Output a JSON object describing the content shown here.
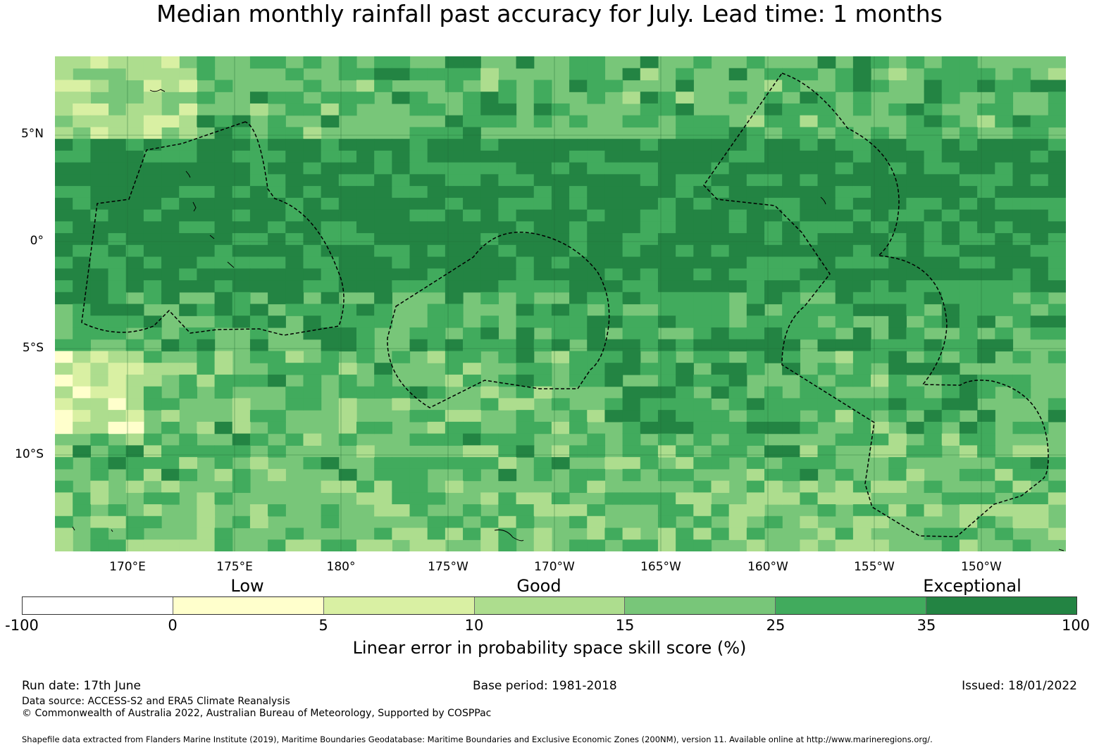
{
  "title": "Median monthly rainfall past accuracy for July. Lead time: 1 months",
  "map": {
    "lat_labels": [
      "5°N",
      "0°",
      "5°S",
      "10°S"
    ],
    "lon_labels": [
      "170°E",
      "175°E",
      "180°",
      "175°W",
      "170°W",
      "165°W",
      "160°W",
      "155°W",
      "150°W"
    ]
  },
  "legend": {
    "categories": [
      "Low",
      "Good",
      "Exceptional"
    ],
    "ticks": [
      "-100",
      "0",
      "5",
      "10",
      "15",
      "25",
      "35",
      "100"
    ],
    "colors": [
      "#ffffff",
      "#ffffcc",
      "#d9f0a3",
      "#addd8e",
      "#78c679",
      "#41ab5d",
      "#238443"
    ],
    "label": "Linear error in probability space skill score (%)"
  },
  "footer": {
    "run_date": "Run date: 17th June",
    "base_period": "Base period: 1981-2018",
    "issued": "Issued: 18/01/2022",
    "data_source": "Data source: ACCESS-S2 and ERA5 Climate Reanalysis",
    "copyright": "© Commonwealth of Australia 2022, Australian Bureau of Meteorology, Supported by COSPPac",
    "shapefile": "Shapefile data extracted from Flanders Marine Institute (2019), Maritime Boundaries Geodatabase: Maritime Boundaries and Exclusive Economic Zones (200NM), version 11. Available online at http://www.marineregions.org/."
  }
}
